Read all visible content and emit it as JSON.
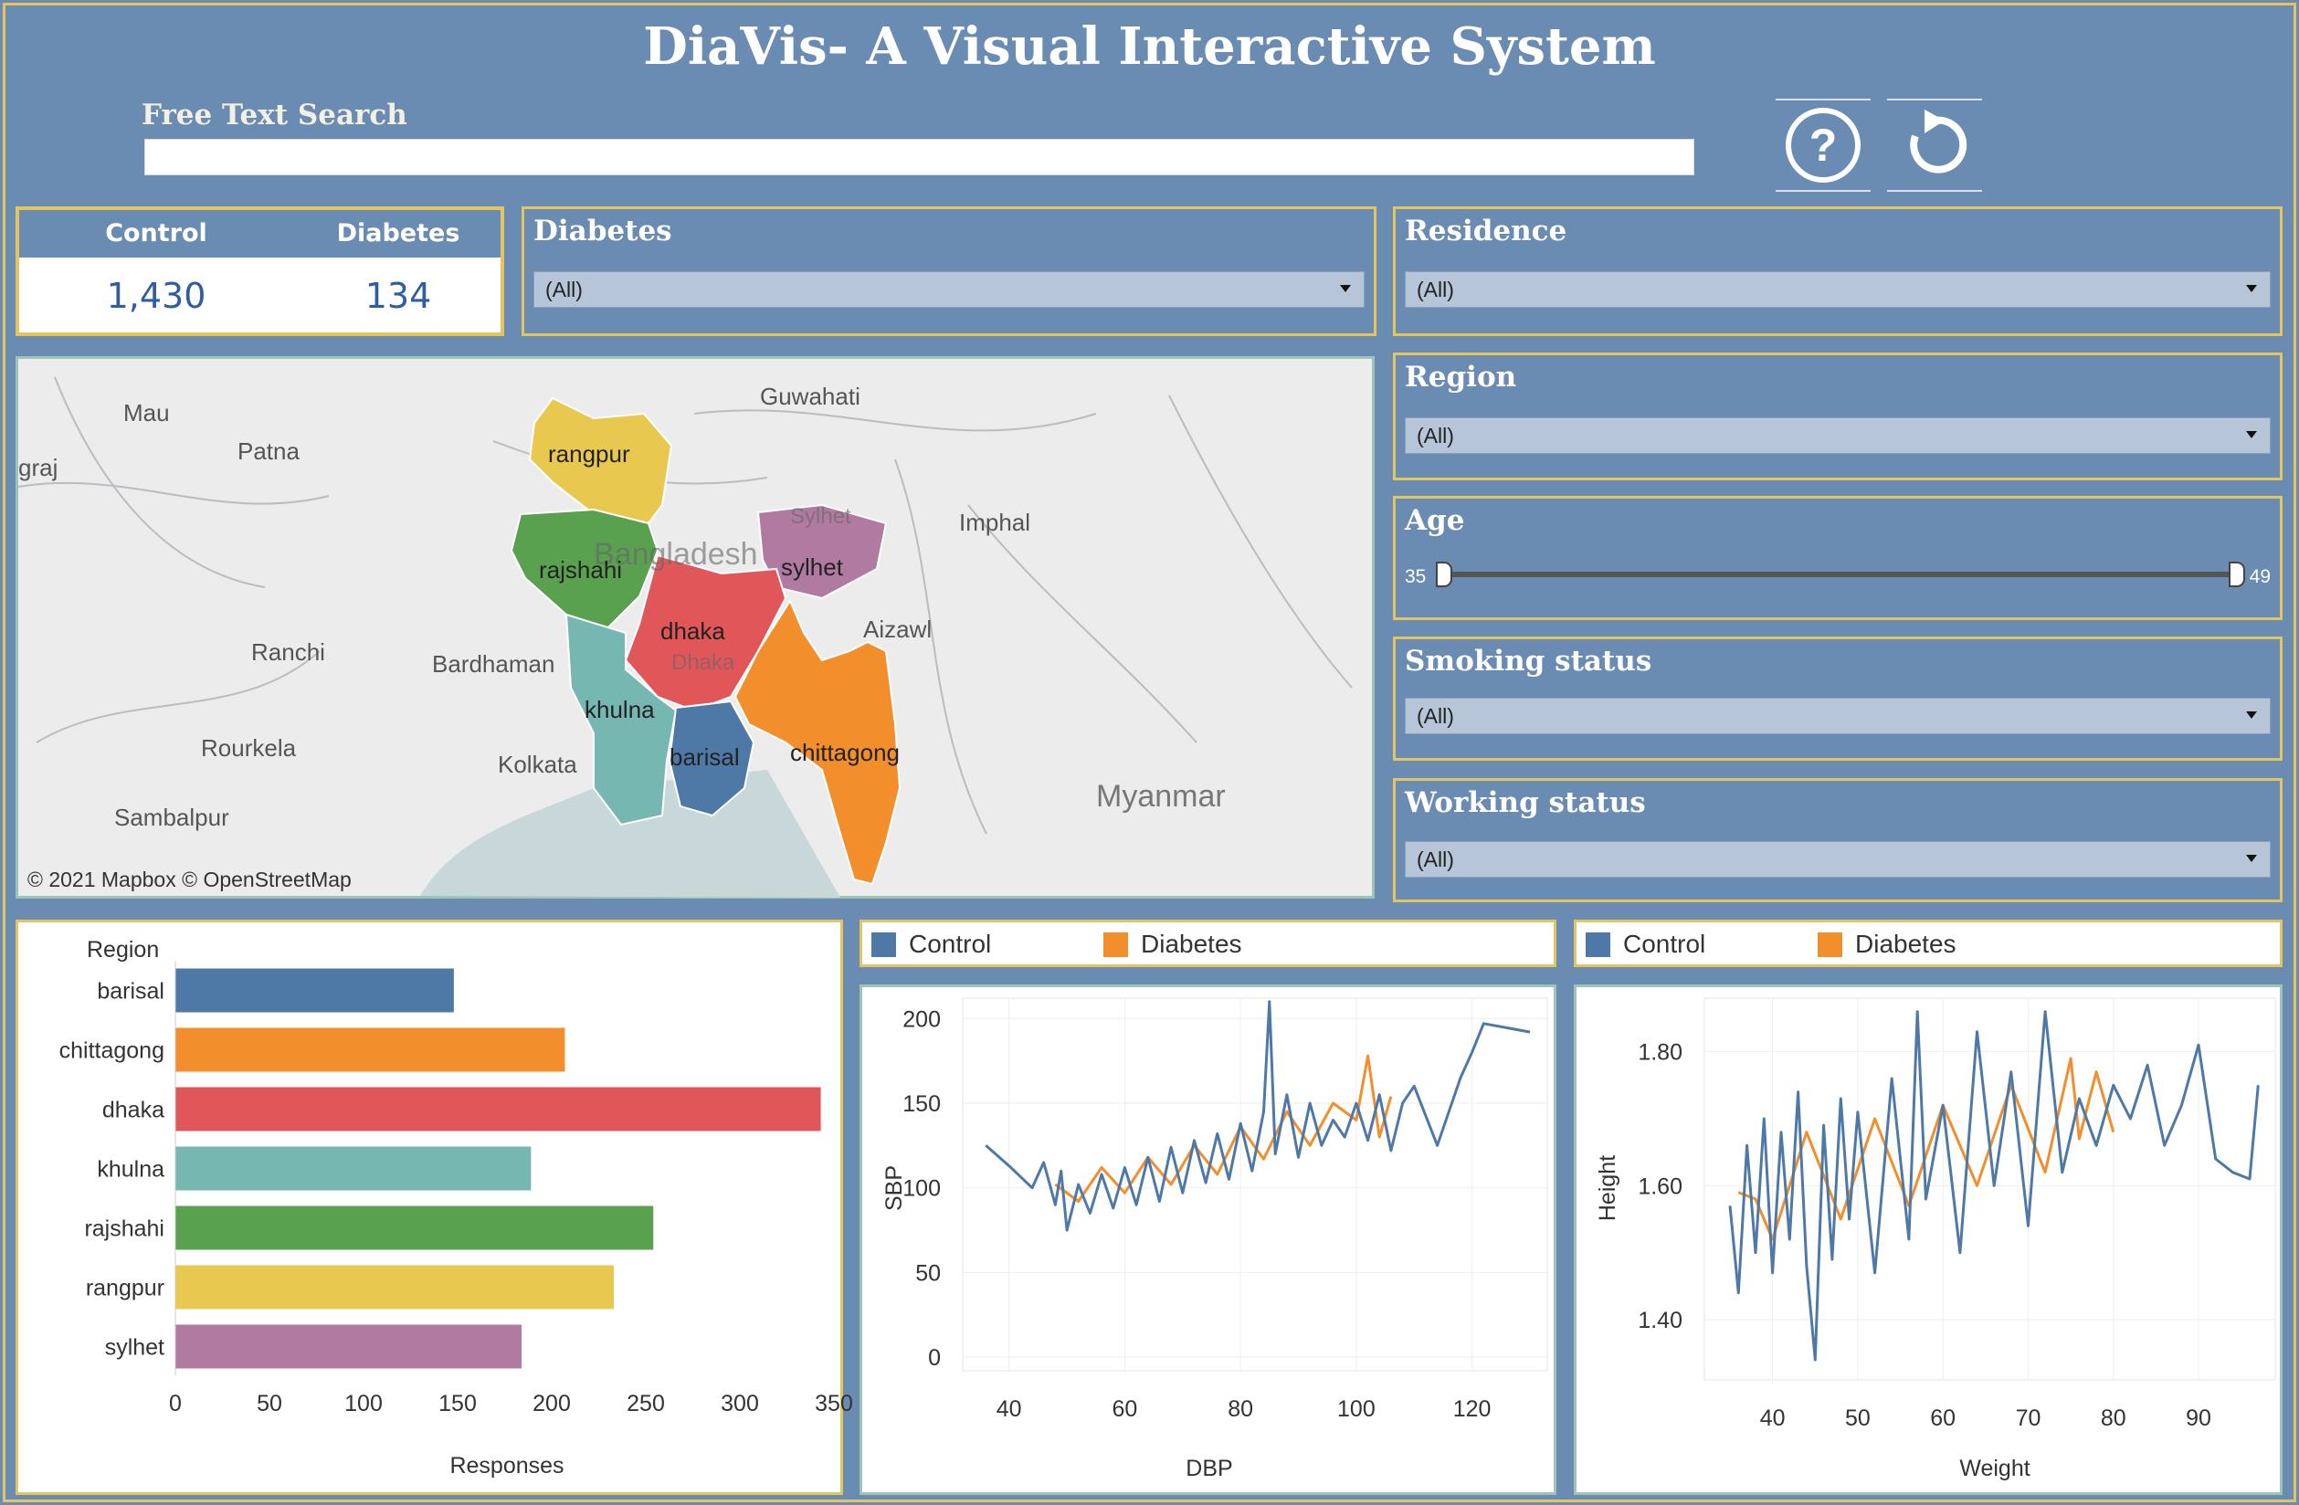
{
  "header": {
    "title": "DiaVis- A Visual Interactive System",
    "search_label": "Free Text Search",
    "search_value": "",
    "help_icon": "question-circle-icon",
    "reset_icon": "refresh-icon"
  },
  "kpi": {
    "control_label": "Control",
    "diabetes_label": "Diabetes",
    "control_value": "1,430",
    "diabetes_value": "134"
  },
  "filters": {
    "diabetes": {
      "label": "Diabetes",
      "value": "(All)"
    },
    "residence": {
      "label": "Residence",
      "value": "(All)"
    },
    "region": {
      "label": "Region",
      "value": "(All)"
    },
    "age": {
      "label": "Age",
      "min": "35",
      "max": "49",
      "range": [
        35,
        49
      ]
    },
    "smoking": {
      "label": "Smoking status",
      "value": "(All)"
    },
    "working": {
      "label": "Working status",
      "value": "(All)"
    }
  },
  "map": {
    "attribution": "© 2021 Mapbox © OpenStreetMap",
    "places": [
      "Mau",
      "Patna",
      "graj",
      "Guwahati",
      "Imphal",
      "Ranchi",
      "Bardhaman",
      "Aizawl",
      "Rourkela",
      "Kolkata",
      "Sambalpur",
      "Myanmar",
      "Bangladesh",
      "Sylhet",
      "Dhaka"
    ],
    "regions": [
      {
        "name": "rangpur",
        "color": "#e8c84e"
      },
      {
        "name": "rajshahi",
        "color": "#59a14f"
      },
      {
        "name": "sylhet",
        "color": "#b07aa1"
      },
      {
        "name": "dhaka",
        "color": "#e15759"
      },
      {
        "name": "khulna",
        "color": "#76b7b2"
      },
      {
        "name": "barisal",
        "color": "#4e79a7"
      },
      {
        "name": "chittagong",
        "color": "#f28e2b"
      }
    ]
  },
  "legend": {
    "control": {
      "label": "Control",
      "color": "#4e79a7"
    },
    "diabetes": {
      "label": "Diabetes",
      "color": "#f28e2b"
    }
  },
  "chart_data": [
    {
      "type": "bar",
      "orientation": "horizontal",
      "header": "Region",
      "categories": [
        "barisal",
        "chittagong",
        "dhaka",
        "khulna",
        "rajshahi",
        "rangpur",
        "sylhet"
      ],
      "values": [
        148,
        207,
        343,
        189,
        254,
        233,
        184
      ],
      "colors": [
        "#4e79a7",
        "#f28e2b",
        "#e15759",
        "#76b7b2",
        "#59a14f",
        "#e8c84e",
        "#b07aa1"
      ],
      "xlabel": "Responses",
      "xticks": [
        0,
        50,
        100,
        150,
        200,
        250,
        300,
        350
      ],
      "xlim": [
        0,
        350
      ]
    },
    {
      "type": "line",
      "xlabel": "DBP",
      "ylabel": "SBP",
      "xlim": [
        32,
        133
      ],
      "ylim": [
        -8,
        212
      ],
      "xticks": [
        40,
        60,
        80,
        100,
        120
      ],
      "yticks": [
        0,
        50,
        100,
        150,
        200
      ],
      "series": [
        {
          "name": "Control",
          "color": "#4e79a7",
          "x": [
            36,
            40,
            44,
            46,
            48,
            49,
            50,
            52,
            54,
            56,
            58,
            60,
            62,
            64,
            66,
            68,
            70,
            72,
            74,
            76,
            78,
            80,
            82,
            84,
            85,
            86,
            88,
            90,
            92,
            94,
            96,
            98,
            100,
            102,
            104,
            106,
            108,
            110,
            114,
            118,
            120,
            122,
            130
          ],
          "y": [
            125,
            113,
            100,
            115,
            90,
            110,
            75,
            102,
            85,
            108,
            88,
            112,
            90,
            118,
            92,
            124,
            97,
            128,
            103,
            132,
            105,
            138,
            110,
            145,
            210,
            120,
            155,
            118,
            150,
            125,
            140,
            130,
            150,
            128,
            155,
            122,
            150,
            160,
            125,
            165,
            180,
            197,
            192
          ]
        },
        {
          "name": "Diabetes",
          "color": "#f28e2b",
          "x": [
            48,
            52,
            56,
            60,
            64,
            68,
            72,
            76,
            80,
            84,
            88,
            92,
            96,
            100,
            102,
            104,
            106
          ],
          "y": [
            102,
            92,
            112,
            97,
            118,
            102,
            125,
            108,
            136,
            117,
            145,
            125,
            150,
            140,
            178,
            130,
            154
          ]
        }
      ]
    },
    {
      "type": "line",
      "xlabel": "Weight",
      "ylabel": "Height",
      "xlim": [
        32,
        99
      ],
      "ylim": [
        1.31,
        1.88
      ],
      "xticks": [
        40,
        50,
        60,
        70,
        80,
        90
      ],
      "yticks": [
        1.4,
        1.6,
        1.8
      ],
      "ytick_labels": [
        "1.40",
        "1.60",
        "1.80"
      ],
      "series": [
        {
          "name": "Control",
          "color": "#4e79a7",
          "x": [
            35,
            36,
            37,
            38,
            39,
            40,
            41,
            42,
            43,
            44,
            45,
            46,
            47,
            48,
            49,
            50,
            52,
            54,
            56,
            57,
            58,
            60,
            62,
            64,
            66,
            68,
            70,
            72,
            74,
            76,
            78,
            80,
            82,
            84,
            86,
            88,
            90,
            92,
            94,
            96,
            97
          ],
          "y": [
            1.57,
            1.44,
            1.66,
            1.5,
            1.7,
            1.47,
            1.68,
            1.52,
            1.74,
            1.48,
            1.34,
            1.69,
            1.49,
            1.73,
            1.55,
            1.71,
            1.47,
            1.76,
            1.52,
            1.86,
            1.58,
            1.72,
            1.5,
            1.83,
            1.6,
            1.77,
            1.54,
            1.86,
            1.62,
            1.73,
            1.66,
            1.75,
            1.7,
            1.78,
            1.66,
            1.72,
            1.81,
            1.64,
            1.62,
            1.61,
            1.75
          ]
        },
        {
          "name": "Diabetes",
          "color": "#f28e2b",
          "x": [
            36,
            38,
            40,
            44,
            48,
            52,
            56,
            60,
            64,
            68,
            72,
            75,
            76,
            78,
            80
          ],
          "y": [
            1.59,
            1.58,
            1.52,
            1.68,
            1.55,
            1.7,
            1.57,
            1.72,
            1.6,
            1.75,
            1.62,
            1.79,
            1.67,
            1.77,
            1.68
          ]
        }
      ]
    }
  ]
}
